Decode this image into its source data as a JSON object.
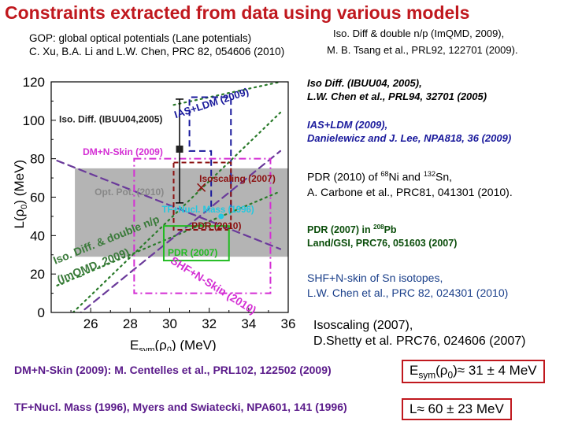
{
  "slide": {
    "title": "Constraints extracted from data using various models",
    "gop_line1": "GOP: global optical potentials (Lane potentials)",
    "gop_line2": "C. Xu, B.A. Li and L.W. Chen, PRC 82, 054606 (2010)",
    "isodiff_line1": "Iso. Diff & double n/p (ImQMD, 2009),",
    "isodiff_line2": "M. B. Tsang et al., PRL92, 122701 (2009).",
    "ibuu_line1": "Iso Diff. (IBUU04, 2005),",
    "ibuu_line2": "L.W. Chen et al., PRL94, 32701 (2005)",
    "ias_line1": "IAS+LDM (2009),",
    "ias_line2": "Danielewicz and J. Lee, NPA818, 36 (2009)",
    "pdr2010_pre": "PDR (2010) of ",
    "pdr2010_ni_mass": "68",
    "pdr2010_ni": "Ni and ",
    "pdr2010_sn_mass": "132",
    "pdr2010_sn": "Sn,",
    "pdr2010_line2": "A. Carbone et al., PRC81, 041301 (2010).",
    "pdr2007_pre": "PDR (2007)  in ",
    "pdr2007_pb_mass": "208",
    "pdr2007_pb": "Pb",
    "pdr2007_line2": "Land/GSI, PRC76, 051603 (2007)",
    "shf_line1": "SHF+N-skin of Sn isotopes,",
    "shf_line2": "L.W. Chen et al., PRC  82, 024301 (2010)",
    "isoscaling_line1": "Isoscaling (2007),",
    "isoscaling_line2": "D.Shetty et al. PRC76, 024606 (2007)",
    "dmn_ref": "DM+N-Skin (2009): M. Centelles et al., PRL102, 122502 (2009)",
    "tf_ref": "TF+Nucl.  Mass (1996), Myers and Swiatecki, NPA601, 141 (1996)",
    "esym_result_E": "E",
    "esym_result_sub": "sym",
    "esym_result_rest": "(ρ",
    "esym_result_sub0": "0",
    "esym_result_val": ")≈ 31 ± 4 MeV",
    "l_result": "L≈ 60 ± 23 MeV"
  },
  "colors": {
    "title_red": "#c0181e",
    "magenta": "#d42fd4",
    "navy": "#1a1a9c",
    "darkred": "#8b1010",
    "green": "#22bb22",
    "cyan": "#22c8e0",
    "gray_band": "#b4b4b4",
    "darkgreen_dots": "#2a7a2a",
    "purple_dots": "#6a3a9a"
  },
  "chart_data": {
    "type": "scatter",
    "xlabel": "E_sym(ρ0) (MeV)",
    "ylabel": "L(ρ0) (MeV)",
    "xlim": [
      24,
      36
    ],
    "ylim": [
      0,
      120
    ],
    "xticks": [
      26,
      28,
      30,
      32,
      34,
      36
    ],
    "yticks": [
      0,
      20,
      40,
      60,
      80,
      100,
      120
    ],
    "constraints": [
      {
        "label": "Opt. Pot. (2010)",
        "kind": "band",
        "x": [
          25.2,
          36.0
        ],
        "y": [
          29,
          75
        ]
      },
      {
        "label": "DM+N-Skin (2009)",
        "kind": "dashed_rect",
        "x": [
          28.2,
          35.1
        ],
        "y": [
          10,
          80
        ]
      },
      {
        "label": "IAS+LDM (2009)",
        "kind": "dashed_polygon",
        "points": [
          [
            32.1,
            55
          ],
          [
            32.1,
            84
          ],
          [
            31.0,
            84
          ],
          [
            31.0,
            112
          ],
          [
            33.1,
            112
          ],
          [
            33.1,
            55
          ]
        ]
      },
      {
        "label": "Iso. Diff. (IBUU04,2005)",
        "kind": "errorbar",
        "x": 30.5,
        "y": 85,
        "yerr": [
          57,
          111
        ]
      },
      {
        "label": "Isoscaling (2007)",
        "kind": "marker_x",
        "x": 31.6,
        "y": 65
      },
      {
        "label": "PDR (2010)",
        "kind": "dashed_rect",
        "x": [
          30.2,
          33.1
        ],
        "y": [
          43,
          78
        ]
      },
      {
        "label": "TF+Nucl. Mass (1996)",
        "kind": "marker_dot",
        "x": 32.6,
        "y": 50
      },
      {
        "label": "PDR (2007)",
        "kind": "solid_rect",
        "x": [
          29.7,
          33.0
        ],
        "y": [
          27,
          45
        ]
      }
    ],
    "lines": [
      {
        "label": "IAS+LDM (2009)",
        "style": "dotted",
        "x": [
          30.2,
          35.6
        ],
        "y": [
          108,
          120
        ]
      },
      {
        "label": "Iso. Diff. & double n/p (ImQMD, 2009)",
        "style": "dotted",
        "x": [
          24.3,
          35.6
        ],
        "y": [
          14,
          63
        ]
      },
      {
        "label": "Iso. Diff. & double n/p (ImQMD, 2009)",
        "style": "dotted",
        "x": [
          24.3,
          35.6
        ],
        "y": [
          -8,
          104
        ]
      },
      {
        "label": "SHF+N-Skin (2010)",
        "style": "dashed",
        "x": [
          24.3,
          35.6
        ],
        "y": [
          79,
          33
        ]
      },
      {
        "label": "SHF+N-Skin (2010)",
        "style": "dashed",
        "x": [
          24.3,
          35.6
        ],
        "y": [
          -10,
          84
        ]
      }
    ]
  }
}
